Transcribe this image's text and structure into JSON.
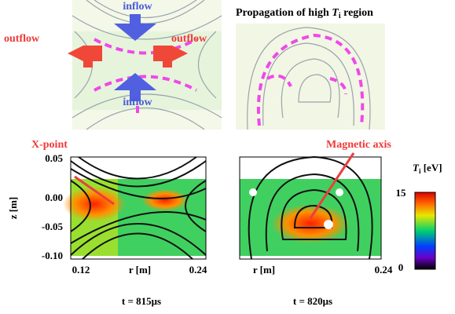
{
  "top_left": {
    "inflow_top": "inflow",
    "inflow_bottom": "inflow",
    "outflow_left": "outflow",
    "outflow_right": "outflow"
  },
  "top_right": {
    "title_prefix": "Propagation of high",
    "title_symbol": "T",
    "title_subscript": "i",
    "title_suffix": "region"
  },
  "bottom_left": {
    "annotation": "X-point",
    "y_label": "z [m]",
    "y_ticks": [
      "0.05",
      "0.00",
      "-0.05",
      "-0.10"
    ],
    "x_ticks": [
      "0.12",
      "0.24"
    ],
    "x_label": "r [m]",
    "time": "t = 815μs"
  },
  "bottom_right": {
    "annotation": "Magnetic axis",
    "x_label": "r [m]",
    "x_tick": "0.24",
    "time": "t = 820μs"
  },
  "colorbar": {
    "symbol": "T",
    "subscript": "i",
    "unit": "[eV]",
    "ticks": [
      "15",
      "0"
    ]
  }
}
